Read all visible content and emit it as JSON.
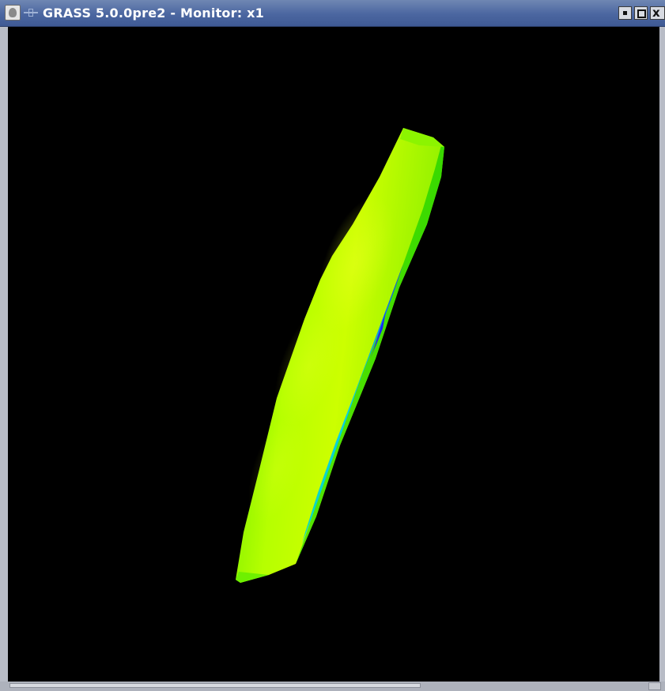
{
  "window": {
    "title": "GRASS 5.0.0pre2 - Monitor: x1",
    "icon": "grass-app-icon",
    "pin_icon": "pin-icon",
    "controls": {
      "minimize_icon": "minimize-icon",
      "maximize_icon": "maximize-icon",
      "close_glyph": "x"
    }
  },
  "monitor": {
    "background_color": "#000000",
    "surface_colors": {
      "top": "#7cf000",
      "body": "#c8ff00",
      "edge": "#44e000",
      "shade_cyan": "#00e0e0",
      "shade_blue": "#1020ff"
    }
  }
}
